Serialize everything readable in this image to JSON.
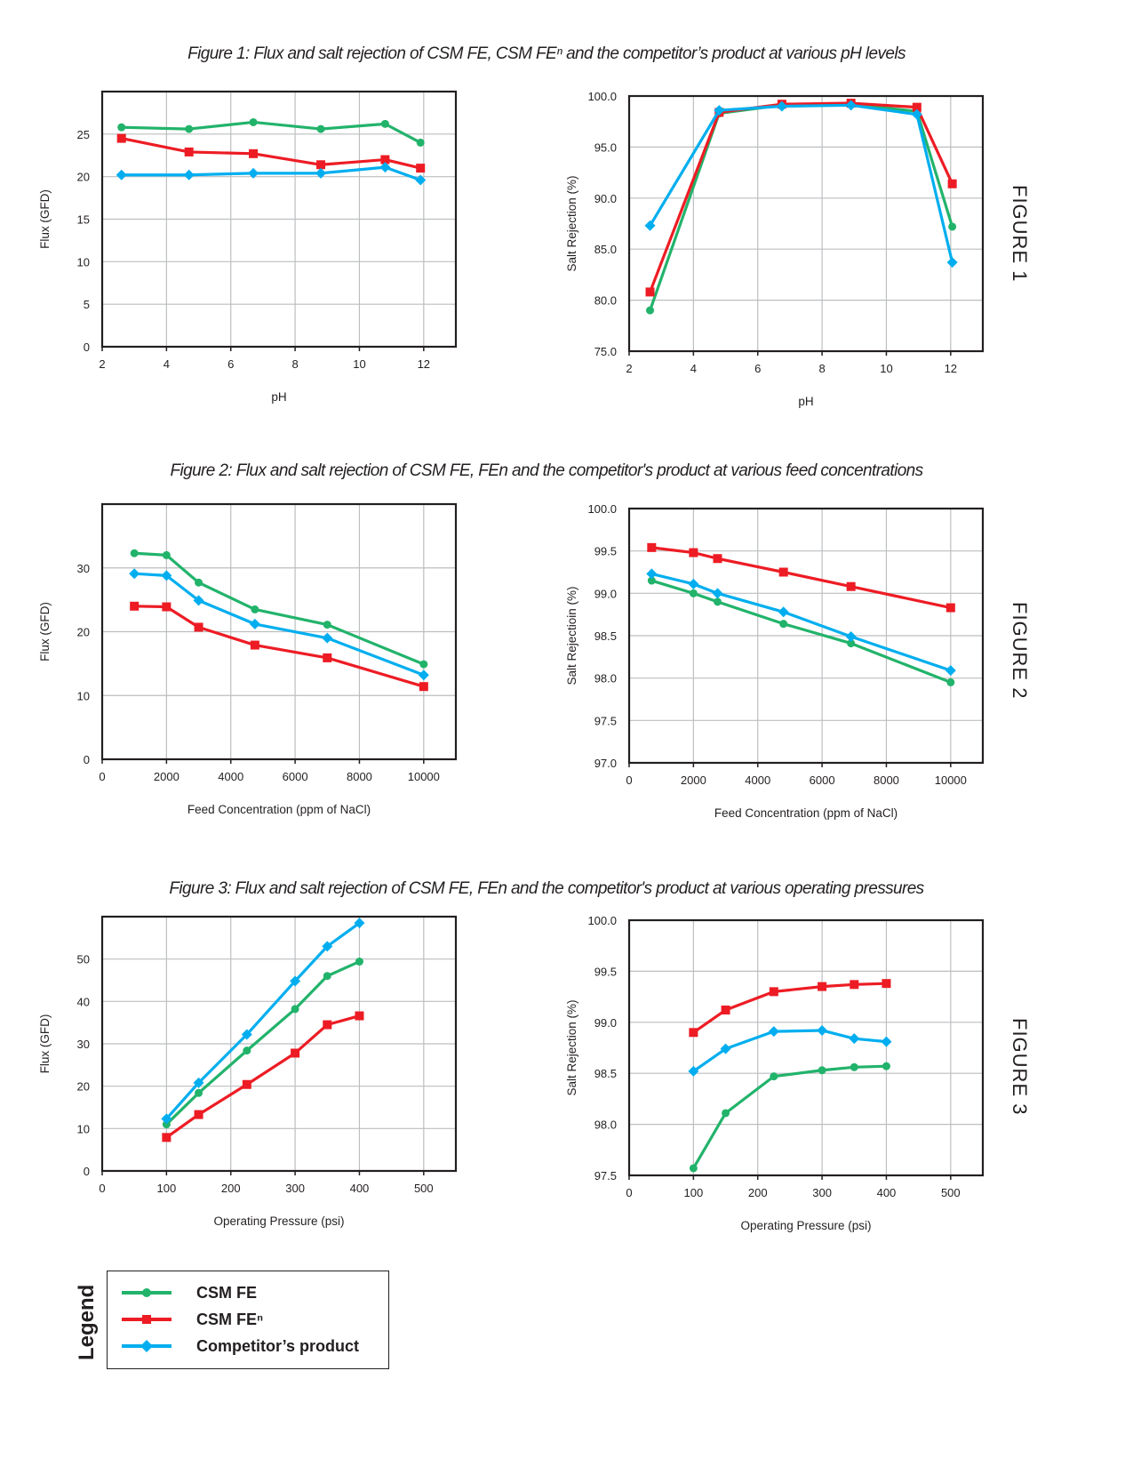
{
  "figures": [
    {
      "title": "Figure 1: Flux and salt rejection of CSM FE, CSM FEⁿ and the competitor’s product at various pH levels",
      "side_label": "FIGURE 1"
    },
    {
      "title": "Figure 2: Flux and salt rejection of CSM FE, FEn and the competitor's product at various feed concentrations",
      "side_label": "FIGURE 2"
    },
    {
      "title": "Figure 3: Flux and salt rejection of CSM FE, FEn and the competitor's product at various operating pressures",
      "side_label": "FIGURE 3"
    }
  ],
  "legend": {
    "title": "Legend",
    "items": [
      {
        "label": "CSM FE",
        "color": "#22b36b",
        "marker": "circle"
      },
      {
        "label": "CSM FEⁿ",
        "color": "#ed1c24",
        "marker": "square"
      },
      {
        "label": "Competitor’s product",
        "color": "#00aeef",
        "marker": "diamond"
      }
    ]
  },
  "chart_data": [
    {
      "type": "line",
      "xlabel": "pH",
      "ylabel": "Flux (GFD)",
      "xlim": [
        2,
        13
      ],
      "ylim": [
        0,
        30
      ],
      "xticks": [
        2,
        4,
        6,
        8,
        10,
        12
      ],
      "yticks": [
        0,
        5,
        10,
        15,
        20,
        25
      ],
      "ydec": 0,
      "grid": true,
      "x": [
        2.6,
        4.7,
        6.7,
        8.8,
        10.8,
        11.9
      ],
      "series": [
        {
          "name": "CSM FE",
          "values": [
            25.8,
            25.6,
            26.4,
            25.6,
            26.2,
            24.0
          ]
        },
        {
          "name": "CSM FEⁿ",
          "values": [
            24.5,
            22.9,
            22.7,
            21.4,
            22.0,
            21.0
          ]
        },
        {
          "name": "Competitor’s product",
          "values": [
            20.2,
            20.2,
            20.4,
            20.4,
            21.1,
            19.6
          ]
        }
      ]
    },
    {
      "type": "line",
      "xlabel": "pH",
      "ylabel": "Salt Rejection (%)",
      "xlim": [
        2,
        13
      ],
      "ylim": [
        75,
        100
      ],
      "xticks": [
        2,
        4,
        6,
        8,
        10,
        12
      ],
      "yticks": [
        75,
        80,
        85,
        90,
        95,
        100
      ],
      "ydec": 1,
      "grid": true,
      "x": [
        2.65,
        4.8,
        6.75,
        8.9,
        10.95,
        12.05
      ],
      "series": [
        {
          "name": "CSM FE",
          "values": [
            79.0,
            98.3,
            99.1,
            99.2,
            98.5,
            87.2
          ]
        },
        {
          "name": "CSM FEⁿ",
          "values": [
            80.8,
            98.4,
            99.2,
            99.3,
            98.9,
            91.4
          ]
        },
        {
          "name": "Competitor’s product",
          "values": [
            87.3,
            98.6,
            99.0,
            99.1,
            98.2,
            83.7
          ]
        }
      ]
    },
    {
      "type": "line",
      "xlabel": "Feed Concentration (ppm of NaCl)",
      "ylabel": "Flux (GFD)",
      "xlim": [
        0,
        11000
      ],
      "ylim": [
        0,
        40
      ],
      "xticks": [
        0,
        2000,
        4000,
        6000,
        8000,
        10000
      ],
      "yticks": [
        0,
        10,
        20,
        30
      ],
      "ydec": 0,
      "grid": true,
      "x": [
        1000,
        2000,
        3000,
        4750,
        7000,
        10000
      ],
      "series": [
        {
          "name": "CSM FE",
          "values": [
            32.3,
            32.0,
            27.7,
            23.5,
            21.1,
            14.9
          ]
        },
        {
          "name": "CSM FEⁿ",
          "values": [
            24.0,
            23.9,
            20.7,
            17.9,
            15.9,
            11.4
          ]
        },
        {
          "name": "Competitor’s product",
          "values": [
            29.1,
            28.8,
            24.9,
            21.2,
            19.0,
            13.2
          ]
        }
      ]
    },
    {
      "type": "line",
      "xlabel": "Feed Concentration (ppm of NaCl)",
      "ylabel": "Salt Rejectioin (%)",
      "xlim": [
        0,
        11000
      ],
      "ylim": [
        97,
        100
      ],
      "xticks": [
        0,
        2000,
        4000,
        6000,
        8000,
        10000
      ],
      "yticks": [
        97,
        97.5,
        98,
        98.5,
        99,
        99.5,
        100
      ],
      "ydec": 1,
      "grid": true,
      "x": [
        700,
        2000,
        2750,
        4800,
        6900,
        10000
      ],
      "series": [
        {
          "name": "CSM FE",
          "values": [
            99.15,
            99.0,
            98.9,
            98.64,
            98.41,
            97.95
          ]
        },
        {
          "name": "CSM FEⁿ",
          "values": [
            99.54,
            99.48,
            99.41,
            99.25,
            99.08,
            98.83
          ]
        },
        {
          "name": "Competitor’s product",
          "values": [
            99.23,
            99.11,
            99.0,
            98.78,
            98.49,
            98.09
          ]
        }
      ]
    },
    {
      "type": "line",
      "xlabel": "Operating Pressure (psi)",
      "ylabel": "Flux (GFD)",
      "xlim": [
        0,
        550
      ],
      "ylim": [
        0,
        60
      ],
      "xticks": [
        0,
        100,
        200,
        300,
        400,
        500
      ],
      "yticks": [
        0,
        10,
        20,
        30,
        40,
        50
      ],
      "ydec": 0,
      "grid": true,
      "x": [
        100,
        150,
        225,
        300,
        350,
        400
      ],
      "series": [
        {
          "name": "CSM FE",
          "values": [
            11.0,
            18.4,
            28.4,
            38.2,
            46.0,
            49.4
          ]
        },
        {
          "name": "CSM FEⁿ",
          "values": [
            7.9,
            13.3,
            20.4,
            27.8,
            34.5,
            36.6
          ]
        },
        {
          "name": "Competitor’s product",
          "values": [
            12.3,
            20.8,
            32.2,
            44.8,
            53.0,
            58.5
          ]
        }
      ]
    },
    {
      "type": "line",
      "xlabel": "Operating Pressure (psi)",
      "ylabel": "Salt Rejection (%)",
      "xlim": [
        0,
        550
      ],
      "ylim": [
        97.5,
        100
      ],
      "xticks": [
        0,
        100,
        200,
        300,
        400,
        500
      ],
      "yticks": [
        97.5,
        98,
        98.5,
        99,
        99.5,
        100
      ],
      "ydec": 1,
      "grid": true,
      "x": [
        100,
        150,
        225,
        300,
        350,
        400
      ],
      "series": [
        {
          "name": "CSM FE",
          "values": [
            97.57,
            98.11,
            98.47,
            98.53,
            98.56,
            98.57
          ]
        },
        {
          "name": "CSM FEⁿ",
          "values": [
            98.9,
            99.12,
            99.3,
            99.35,
            99.37,
            99.38
          ]
        },
        {
          "name": "Competitor’s product",
          "values": [
            98.52,
            98.74,
            98.91,
            98.92,
            98.84,
            98.81
          ]
        }
      ]
    }
  ]
}
